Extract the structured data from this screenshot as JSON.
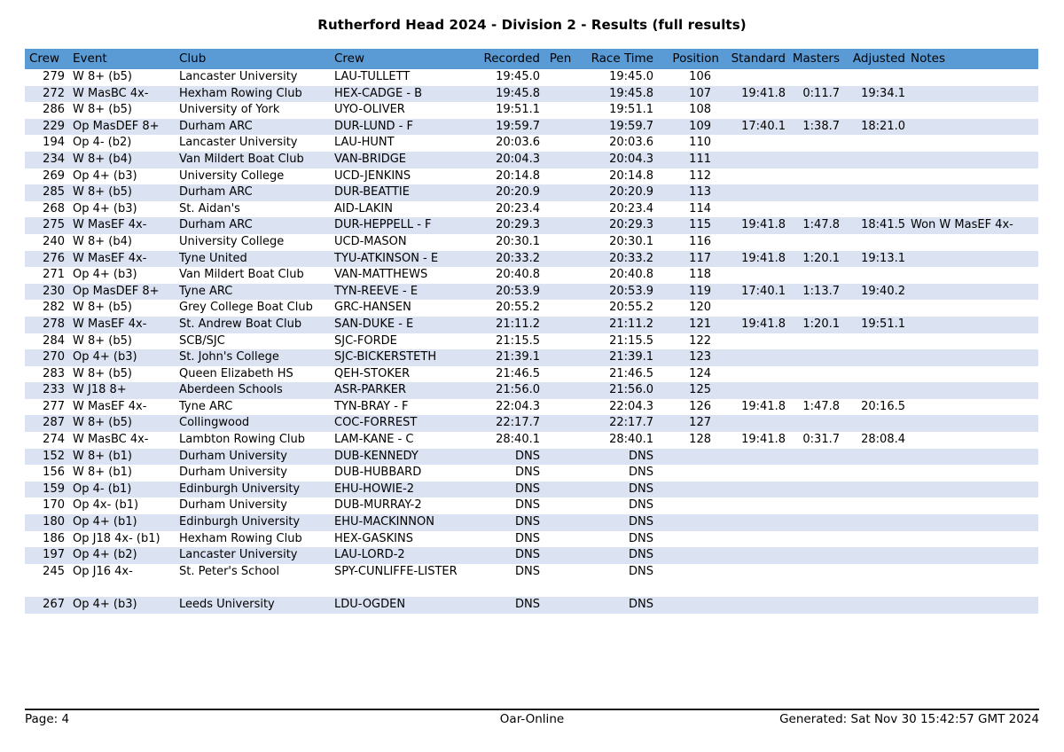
{
  "title": "Rutherford Head 2024 - Division 2 - Results (full results)",
  "colors": {
    "header_bg": "#5b9bd5",
    "stripe_bg": "#dbe2f1",
    "text": "#000000"
  },
  "table": {
    "columns": [
      "Crew",
      "Event",
      "Club",
      "Crew",
      "Recorded",
      "Pen",
      "Race Time",
      "Position",
      "Standard",
      "Masters",
      "Adjusted",
      "Notes"
    ],
    "rows": [
      [
        "279",
        "W 8+ (b5)",
        "Lancaster University",
        "LAU-TULLETT",
        "19:45.0",
        "",
        "19:45.0",
        "106",
        "",
        "",
        "",
        ""
      ],
      [
        "272",
        "W MasBC 4x-",
        "Hexham Rowing Club",
        "HEX-CADGE - B",
        "19:45.8",
        "",
        "19:45.8",
        "107",
        "19:41.8",
        "0:11.7",
        "19:34.1",
        ""
      ],
      [
        "286",
        "W 8+ (b5)",
        "University of York",
        "UYO-OLIVER",
        "19:51.1",
        "",
        "19:51.1",
        "108",
        "",
        "",
        "",
        ""
      ],
      [
        "229",
        "Op MasDEF 8+",
        "Durham ARC",
        "DUR-LUND - F",
        "19:59.7",
        "",
        "19:59.7",
        "109",
        "17:40.1",
        "1:38.7",
        "18:21.0",
        ""
      ],
      [
        "194",
        "Op 4- (b2)",
        "Lancaster University",
        "LAU-HUNT",
        "20:03.6",
        "",
        "20:03.6",
        "110",
        "",
        "",
        "",
        ""
      ],
      [
        "234",
        "W 8+ (b4)",
        "Van Mildert Boat Club",
        "VAN-BRIDGE",
        "20:04.3",
        "",
        "20:04.3",
        "111",
        "",
        "",
        "",
        ""
      ],
      [
        "269",
        "Op 4+ (b3)",
        "University College",
        "UCD-JENKINS",
        "20:14.8",
        "",
        "20:14.8",
        "112",
        "",
        "",
        "",
        ""
      ],
      [
        "285",
        "W 8+ (b5)",
        "Durham ARC",
        "DUR-BEATTIE",
        "20:20.9",
        "",
        "20:20.9",
        "113",
        "",
        "",
        "",
        ""
      ],
      [
        "268",
        "Op 4+ (b3)",
        "St. Aidan's",
        "AID-LAKIN",
        "20:23.4",
        "",
        "20:23.4",
        "114",
        "",
        "",
        "",
        ""
      ],
      [
        "275",
        "W MasEF 4x-",
        "Durham ARC",
        "DUR-HEPPELL - F",
        "20:29.3",
        "",
        "20:29.3",
        "115",
        "19:41.8",
        "1:47.8",
        "18:41.5",
        "Won W MasEF 4x-"
      ],
      [
        "240",
        "W 8+ (b4)",
        "University College",
        "UCD-MASON",
        "20:30.1",
        "",
        "20:30.1",
        "116",
        "",
        "",
        "",
        ""
      ],
      [
        "276",
        "W MasEF 4x-",
        "Tyne United",
        "TYU-ATKINSON - E",
        "20:33.2",
        "",
        "20:33.2",
        "117",
        "19:41.8",
        "1:20.1",
        "19:13.1",
        ""
      ],
      [
        "271",
        "Op 4+ (b3)",
        "Van Mildert Boat Club",
        "VAN-MATTHEWS",
        "20:40.8",
        "",
        "20:40.8",
        "118",
        "",
        "",
        "",
        ""
      ],
      [
        "230",
        "Op MasDEF 8+",
        "Tyne ARC",
        "TYN-REEVE - E",
        "20:53.9",
        "",
        "20:53.9",
        "119",
        "17:40.1",
        "1:13.7",
        "19:40.2",
        ""
      ],
      [
        "282",
        "W 8+ (b5)",
        "Grey College Boat Club",
        "GRC-HANSEN",
        "20:55.2",
        "",
        "20:55.2",
        "120",
        "",
        "",
        "",
        ""
      ],
      [
        "278",
        "W MasEF 4x-",
        "St. Andrew Boat Club",
        "SAN-DUKE - E",
        "21:11.2",
        "",
        "21:11.2",
        "121",
        "19:41.8",
        "1:20.1",
        "19:51.1",
        ""
      ],
      [
        "284",
        "W 8+ (b5)",
        "SCB/SJC",
        "SJC-FORDE",
        "21:15.5",
        "",
        "21:15.5",
        "122",
        "",
        "",
        "",
        ""
      ],
      [
        "270",
        "Op 4+ (b3)",
        "St. John's College",
        "SJC-BICKERSTETH",
        "21:39.1",
        "",
        "21:39.1",
        "123",
        "",
        "",
        "",
        ""
      ],
      [
        "283",
        "W 8+ (b5)",
        "Queen Elizabeth HS",
        "QEH-STOKER",
        "21:46.5",
        "",
        "21:46.5",
        "124",
        "",
        "",
        "",
        ""
      ],
      [
        "233",
        "W J18 8+",
        "Aberdeen Schools",
        "ASR-PARKER",
        "21:56.0",
        "",
        "21:56.0",
        "125",
        "",
        "",
        "",
        ""
      ],
      [
        "277",
        "W MasEF 4x-",
        "Tyne ARC",
        "TYN-BRAY - F",
        "22:04.3",
        "",
        "22:04.3",
        "126",
        "19:41.8",
        "1:47.8",
        "20:16.5",
        ""
      ],
      [
        "287",
        "W 8+ (b5)",
        "Collingwood",
        "COC-FORREST",
        "22:17.7",
        "",
        "22:17.7",
        "127",
        "",
        "",
        "",
        ""
      ],
      [
        "274",
        "W MasBC 4x-",
        "Lambton Rowing Club",
        "LAM-KANE - C",
        "28:40.1",
        "",
        "28:40.1",
        "128",
        "19:41.8",
        "0:31.7",
        "28:08.4",
        ""
      ],
      [
        "152",
        "W 8+ (b1)",
        "Durham University",
        "DUB-KENNEDY",
        "DNS",
        "",
        "DNS",
        "",
        "",
        "",
        "",
        ""
      ],
      [
        "156",
        "W 8+ (b1)",
        "Durham University",
        "DUB-HUBBARD",
        "DNS",
        "",
        "DNS",
        "",
        "",
        "",
        "",
        ""
      ],
      [
        "159",
        "Op 4- (b1)",
        "Edinburgh University",
        "EHU-HOWIE-2",
        "DNS",
        "",
        "DNS",
        "",
        "",
        "",
        "",
        ""
      ],
      [
        "170",
        "Op 4x- (b1)",
        "Durham University",
        "DUB-MURRAY-2",
        "DNS",
        "",
        "DNS",
        "",
        "",
        "",
        "",
        ""
      ],
      [
        "180",
        "Op 4+ (b1)",
        "Edinburgh University",
        "EHU-MACKINNON",
        "DNS",
        "",
        "DNS",
        "",
        "",
        "",
        "",
        ""
      ],
      [
        "186",
        "Op J18 4x- (b1)",
        "Hexham Rowing Club",
        "HEX-GASKINS",
        "DNS",
        "",
        "DNS",
        "",
        "",
        "",
        "",
        ""
      ],
      [
        "197",
        "Op 4+ (b2)",
        "Lancaster University",
        "LAU-LORD-2",
        "DNS",
        "",
        "DNS",
        "",
        "",
        "",
        "",
        ""
      ],
      [
        "245",
        "Op J16 4x-",
        "St. Peter's School",
        "SPY-CUNLIFFE-LISTER",
        "DNS",
        "",
        "DNS",
        "",
        "",
        "",
        "",
        ""
      ],
      [
        "",
        "",
        "",
        "",
        "",
        "",
        "",
        "",
        "",
        "",
        "",
        ""
      ],
      [
        "267",
        "Op 4+ (b3)",
        "Leeds University",
        "LDU-OGDEN",
        "DNS",
        "",
        "DNS",
        "",
        "",
        "",
        "",
        ""
      ]
    ]
  },
  "footer": {
    "page": "Page: 4",
    "center": "Oar-Online",
    "generated": "Generated: Sat Nov 30 15:42:57 GMT 2024"
  }
}
